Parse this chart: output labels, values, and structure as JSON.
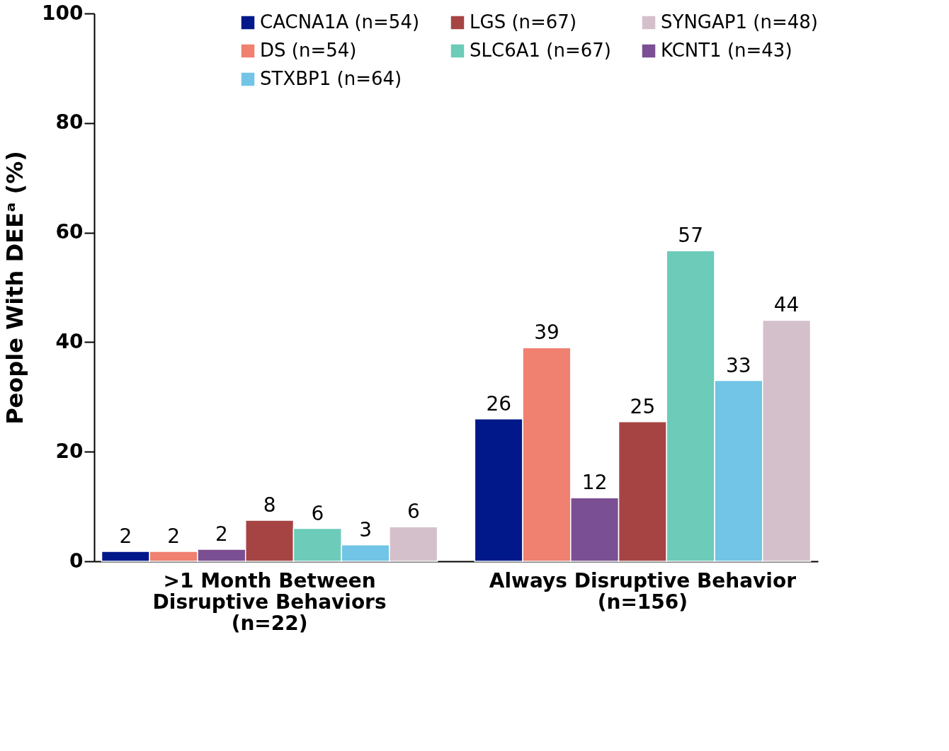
{
  "chart_data": {
    "type": "bar",
    "ylabel": "People With DEEᵃ (%)",
    "categories": [
      ">1 Month Between\nDisruptive Behaviors\n(n=22)",
      "Always Disruptive Behavior\n(n=156)"
    ],
    "series": [
      {
        "name": "CACNA1A (n=54)",
        "color": "#00188a",
        "values": [
          1.8,
          26
        ],
        "value_labels": [
          "2",
          "26"
        ]
      },
      {
        "name": "DS (n=54)",
        "color": "#f08070",
        "values": [
          1.8,
          39
        ],
        "value_labels": [
          "2",
          "39"
        ]
      },
      {
        "name": "KCNT1 (n=43)",
        "color": "#7b4f93",
        "values": [
          2.2,
          11.6
        ],
        "value_labels": [
          "2",
          "12"
        ]
      },
      {
        "name": "LGS (n=67)",
        "color": "#a64444",
        "values": [
          7.5,
          25.5
        ],
        "value_labels": [
          "8",
          "25"
        ]
      },
      {
        "name": "SLC6A1 (n=67)",
        "color": "#6ccbb9",
        "values": [
          6.0,
          56.7
        ],
        "value_labels": [
          "6",
          "57"
        ]
      },
      {
        "name": "STXBP1 (n=64)",
        "color": "#72c5e6",
        "values": [
          3.0,
          33
        ],
        "value_labels": [
          "3",
          "33"
        ]
      },
      {
        "name": "SYNGAP1 (n=48)",
        "color": "#d4c0cb",
        "values": [
          6.3,
          44
        ],
        "value_labels": [
          "6",
          "44"
        ]
      }
    ],
    "ylim": [
      0,
      100
    ],
    "yticks": [
      0,
      20,
      40,
      60,
      80,
      100
    ],
    "grid": false,
    "legend": "top right"
  }
}
